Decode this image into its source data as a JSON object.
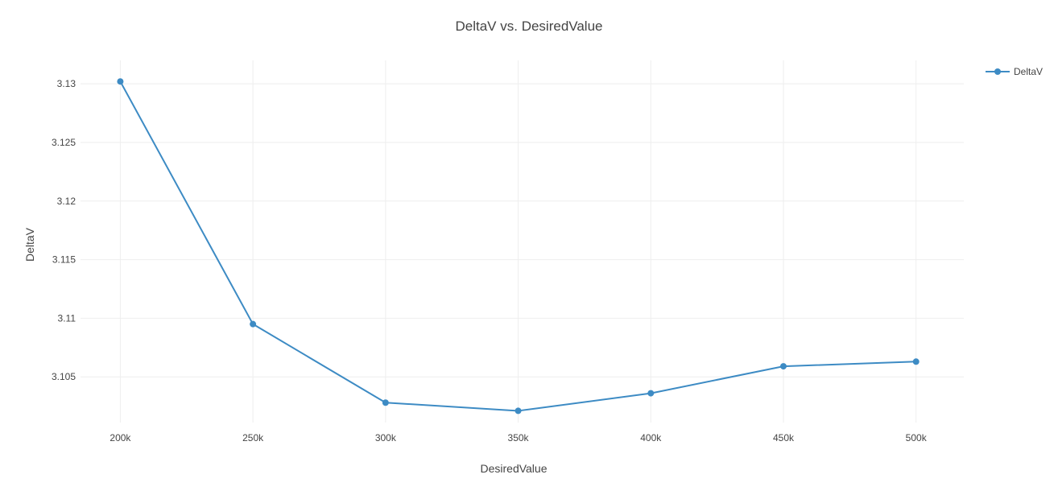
{
  "chart_data": {
    "type": "line",
    "title": "DeltaV vs. DesiredValue",
    "xlabel": "DesiredValue",
    "ylabel": "DeltaV",
    "x": [
      200000,
      250000,
      300000,
      350000,
      400000,
      450000,
      500000
    ],
    "series": [
      {
        "name": "DeltaV",
        "color": "#3d8bc4",
        "values": [
          3.1302,
          3.1095,
          3.1028,
          3.1021,
          3.1036,
          3.1059,
          3.1063
        ]
      }
    ],
    "xticks": [
      200000,
      250000,
      300000,
      350000,
      400000,
      450000,
      500000
    ],
    "xtick_labels": [
      "200k",
      "250k",
      "300k",
      "350k",
      "400k",
      "450k",
      "500k"
    ],
    "yticks": [
      3.105,
      3.11,
      3.115,
      3.12,
      3.125,
      3.13
    ],
    "ytick_labels": [
      "3.105",
      "3.11",
      "3.115",
      "3.12",
      "3.125",
      "3.13"
    ],
    "xlim": [
      185000,
      518000
    ],
    "ylim": [
      3.1011,
      3.132
    ],
    "grid": true,
    "legend_position": "top-right"
  }
}
